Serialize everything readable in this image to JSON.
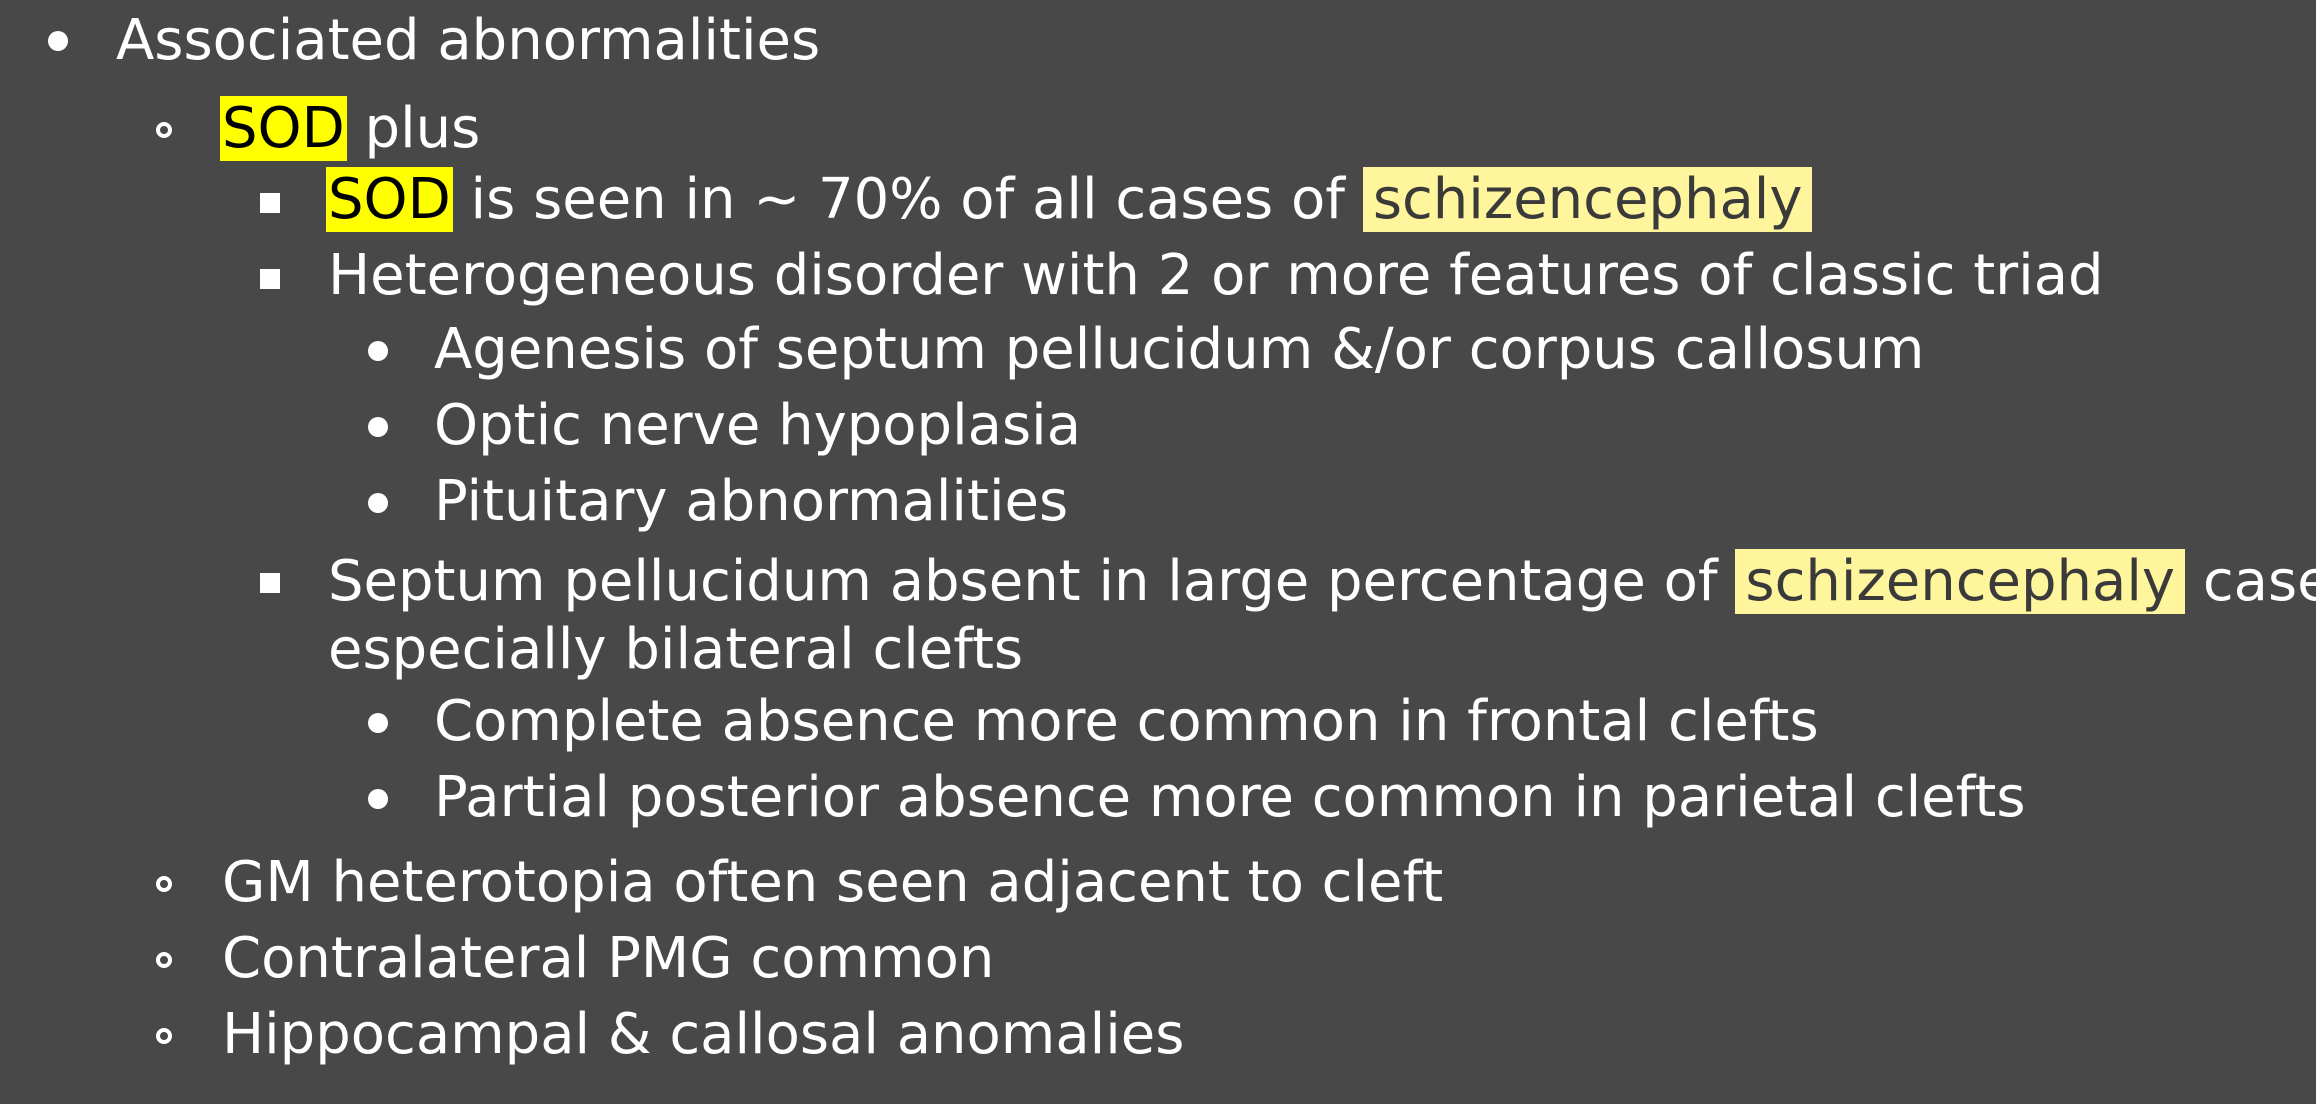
{
  "items": {
    "l1": {
      "text": "Associated abnormalities"
    },
    "l2": {
      "term": "SOD",
      "rest": " plus"
    },
    "l3": {
      "term": "SOD",
      "mid": " is seen in ~ 70% of all cases of ",
      "term2": "schizencephaly"
    },
    "l4": {
      "text": "Heterogeneous disorder with 2 or more features of classic triad"
    },
    "l5": {
      "text": "Agenesis of septum pellucidum &/or corpus callosum"
    },
    "l6": {
      "text": "Optic nerve hypoplasia"
    },
    "l7": {
      "text": "Pituitary abnormalities"
    },
    "l8": {
      "pre": "Septum pellucidum absent in large percentage of ",
      "term": "schizencephaly",
      "post": " cases,"
    },
    "l8b": {
      "text": "especially bilateral clefts"
    },
    "l9": {
      "text": "Complete absence more common in frontal clefts"
    },
    "l10": {
      "text": "Partial posterior absence more common in parietal clefts"
    },
    "l11": {
      "text": "GM heterotopia often seen adjacent to cleft"
    },
    "l12": {
      "text": "Contralateral PMG common"
    },
    "l13": {
      "text": "Hippocampal & callosal anomalies"
    }
  }
}
